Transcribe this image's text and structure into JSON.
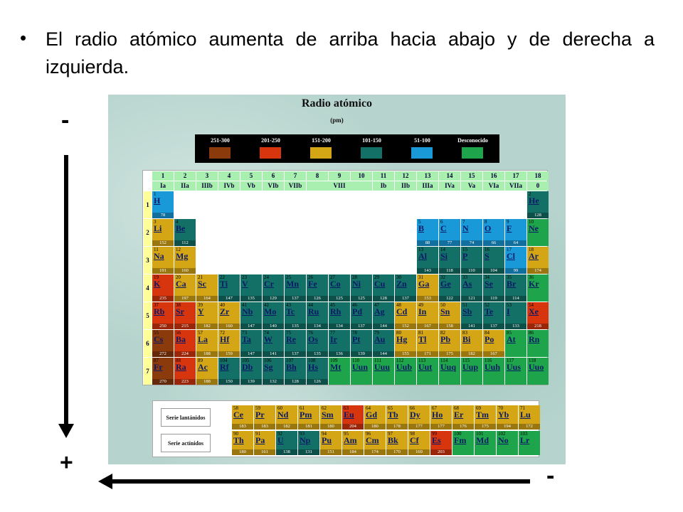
{
  "slide": {
    "bullet": "El radio atómico aumenta de arriba hacia abajo y de derecha a izquierda."
  },
  "markers": {
    "top": "-",
    "bottom": "+",
    "right": "-"
  },
  "chart": {
    "title": "Radio atómico",
    "unit": "(pm)",
    "legend": [
      {
        "label": "251-300",
        "color": "#8b3a0c"
      },
      {
        "label": "201-250",
        "color": "#d6350e"
      },
      {
        "label": "151-200",
        "color": "#d4a514"
      },
      {
        "label": "101-150",
        "color": "#137066"
      },
      {
        "label": "51-100",
        "color": "#1a99d8"
      },
      {
        "label": "Desconocido",
        "color": "#1ea54b"
      }
    ],
    "groups_num": [
      "1",
      "2",
      "3",
      "4",
      "5",
      "6",
      "7",
      "8",
      "9",
      "10",
      "11",
      "12",
      "13",
      "14",
      "15",
      "16",
      "17",
      "18"
    ],
    "groups_roman": [
      "Ia",
      "IIa",
      "IIIb",
      "IVb",
      "Vb",
      "VIb",
      "VIIb",
      "VIII",
      "Ib",
      "IIb",
      "IIIa",
      "IVa",
      "Va",
      "VIa",
      "VIIa",
      "0"
    ],
    "periods": [
      "1",
      "2",
      "3",
      "4",
      "5",
      "6",
      "7"
    ],
    "series_labels": {
      "lanthanides": "Serie lantánidos",
      "actinides": "Serie actínidos"
    },
    "elements": [
      {
        "z": "1",
        "sym": "H",
        "r": "78",
        "p": 1,
        "g": 1
      },
      {
        "z": "2",
        "sym": "He",
        "r": "128",
        "p": 1,
        "g": 18
      },
      {
        "z": "3",
        "sym": "Li",
        "r": "152",
        "p": 2,
        "g": 1
      },
      {
        "z": "4",
        "sym": "Be",
        "r": "112",
        "p": 2,
        "g": 2
      },
      {
        "z": "5",
        "sym": "B",
        "r": "88",
        "p": 2,
        "g": 13
      },
      {
        "z": "6",
        "sym": "C",
        "r": "77",
        "p": 2,
        "g": 14
      },
      {
        "z": "7",
        "sym": "N",
        "r": "74",
        "p": 2,
        "g": 15
      },
      {
        "z": "8",
        "sym": "O",
        "r": "66",
        "p": 2,
        "g": 16
      },
      {
        "z": "9",
        "sym": "F",
        "r": "64",
        "p": 2,
        "g": 17
      },
      {
        "z": "10",
        "sym": "Ne",
        "r": "",
        "p": 2,
        "g": 18
      },
      {
        "z": "11",
        "sym": "Na",
        "r": "191",
        "p": 3,
        "g": 1
      },
      {
        "z": "12",
        "sym": "Mg",
        "r": "160",
        "p": 3,
        "g": 2
      },
      {
        "z": "13",
        "sym": "Al",
        "r": "143",
        "p": 3,
        "g": 13
      },
      {
        "z": "14",
        "sym": "Si",
        "r": "118",
        "p": 3,
        "g": 14
      },
      {
        "z": "15",
        "sym": "P",
        "r": "110",
        "p": 3,
        "g": 15
      },
      {
        "z": "16",
        "sym": "S",
        "r": "104",
        "p": 3,
        "g": 16
      },
      {
        "z": "17",
        "sym": "Cl",
        "r": "99",
        "p": 3,
        "g": 17
      },
      {
        "z": "18",
        "sym": "Ar",
        "r": "174",
        "p": 3,
        "g": 18
      },
      {
        "z": "19",
        "sym": "K",
        "r": "235",
        "p": 4,
        "g": 1
      },
      {
        "z": "20",
        "sym": "Ca",
        "r": "197",
        "p": 4,
        "g": 2
      },
      {
        "z": "21",
        "sym": "Sc",
        "r": "164",
        "p": 4,
        "g": 3
      },
      {
        "z": "22",
        "sym": "Ti",
        "r": "147",
        "p": 4,
        "g": 4
      },
      {
        "z": "23",
        "sym": "V",
        "r": "135",
        "p": 4,
        "g": 5
      },
      {
        "z": "24",
        "sym": "Cr",
        "r": "129",
        "p": 4,
        "g": 6
      },
      {
        "z": "25",
        "sym": "Mn",
        "r": "137",
        "p": 4,
        "g": 7
      },
      {
        "z": "26",
        "sym": "Fe",
        "r": "126",
        "p": 4,
        "g": 8
      },
      {
        "z": "27",
        "sym": "Co",
        "r": "125",
        "p": 4,
        "g": 9
      },
      {
        "z": "28",
        "sym": "Ni",
        "r": "125",
        "p": 4,
        "g": 10
      },
      {
        "z": "29",
        "sym": "Cu",
        "r": "128",
        "p": 4,
        "g": 11
      },
      {
        "z": "30",
        "sym": "Zn",
        "r": "137",
        "p": 4,
        "g": 12
      },
      {
        "z": "31",
        "sym": "Ga",
        "r": "153",
        "p": 4,
        "g": 13
      },
      {
        "z": "32",
        "sym": "Ge",
        "r": "122",
        "p": 4,
        "g": 14
      },
      {
        "z": "33",
        "sym": "As",
        "r": "121",
        "p": 4,
        "g": 15
      },
      {
        "z": "34",
        "sym": "Se",
        "r": "119",
        "p": 4,
        "g": 16
      },
      {
        "z": "35",
        "sym": "Br",
        "r": "114",
        "p": 4,
        "g": 17
      },
      {
        "z": "36",
        "sym": "Kr",
        "r": "",
        "p": 4,
        "g": 18
      },
      {
        "z": "37",
        "sym": "Rb",
        "r": "250",
        "p": 5,
        "g": 1
      },
      {
        "z": "38",
        "sym": "Sr",
        "r": "215",
        "p": 5,
        "g": 2
      },
      {
        "z": "39",
        "sym": "Y",
        "r": "182",
        "p": 5,
        "g": 3
      },
      {
        "z": "40",
        "sym": "Zr",
        "r": "160",
        "p": 5,
        "g": 4
      },
      {
        "z": "41",
        "sym": "Nb",
        "r": "147",
        "p": 5,
        "g": 5
      },
      {
        "z": "42",
        "sym": "Mo",
        "r": "140",
        "p": 5,
        "g": 6
      },
      {
        "z": "43",
        "sym": "Tc",
        "r": "135",
        "p": 5,
        "g": 7
      },
      {
        "z": "44",
        "sym": "Ru",
        "r": "134",
        "p": 5,
        "g": 8
      },
      {
        "z": "45",
        "sym": "Rh",
        "r": "134",
        "p": 5,
        "g": 9
      },
      {
        "z": "46",
        "sym": "Pd",
        "r": "137",
        "p": 5,
        "g": 10
      },
      {
        "z": "47",
        "sym": "Ag",
        "r": "144",
        "p": 5,
        "g": 11
      },
      {
        "z": "48",
        "sym": "Cd",
        "r": "152",
        "p": 5,
        "g": 12
      },
      {
        "z": "49",
        "sym": "In",
        "r": "167",
        "p": 5,
        "g": 13
      },
      {
        "z": "50",
        "sym": "Sn",
        "r": "158",
        "p": 5,
        "g": 14
      },
      {
        "z": "51",
        "sym": "Sb",
        "r": "141",
        "p": 5,
        "g": 15
      },
      {
        "z": "52",
        "sym": "Te",
        "r": "137",
        "p": 5,
        "g": 16
      },
      {
        "z": "53",
        "sym": "I",
        "r": "133",
        "p": 5,
        "g": 17
      },
      {
        "z": "54",
        "sym": "Xe",
        "r": "218",
        "p": 5,
        "g": 18
      },
      {
        "z": "55",
        "sym": "Cs",
        "r": "272",
        "p": 6,
        "g": 1
      },
      {
        "z": "56",
        "sym": "Ba",
        "r": "224",
        "p": 6,
        "g": 2
      },
      {
        "z": "57",
        "sym": "La",
        "r": "188",
        "p": 6,
        "g": 3
      },
      {
        "z": "72",
        "sym": "Hf",
        "r": "159",
        "p": 6,
        "g": 4
      },
      {
        "z": "73",
        "sym": "Ta",
        "r": "147",
        "p": 6,
        "g": 5
      },
      {
        "z": "74",
        "sym": "W",
        "r": "141",
        "p": 6,
        "g": 6
      },
      {
        "z": "75",
        "sym": "Re",
        "r": "137",
        "p": 6,
        "g": 7
      },
      {
        "z": "76",
        "sym": "Os",
        "r": "135",
        "p": 6,
        "g": 8
      },
      {
        "z": "77",
        "sym": "Ir",
        "r": "136",
        "p": 6,
        "g": 9
      },
      {
        "z": "78",
        "sym": "Pt",
        "r": "139",
        "p": 6,
        "g": 10
      },
      {
        "z": "79",
        "sym": "Au",
        "r": "144",
        "p": 6,
        "g": 11
      },
      {
        "z": "80",
        "sym": "Hg",
        "r": "155",
        "p": 6,
        "g": 12
      },
      {
        "z": "81",
        "sym": "Tl",
        "r": "171",
        "p": 6,
        "g": 13
      },
      {
        "z": "82",
        "sym": "Pb",
        "r": "175",
        "p": 6,
        "g": 14
      },
      {
        "z": "83",
        "sym": "Bi",
        "r": "182",
        "p": 6,
        "g": 15
      },
      {
        "z": "84",
        "sym": "Po",
        "r": "167",
        "p": 6,
        "g": 16
      },
      {
        "z": "85",
        "sym": "At",
        "r": "",
        "p": 6,
        "g": 17
      },
      {
        "z": "86",
        "sym": "Rn",
        "r": "",
        "p": 6,
        "g": 18
      },
      {
        "z": "87",
        "sym": "Fr",
        "r": "270",
        "p": 7,
        "g": 1
      },
      {
        "z": "88",
        "sym": "Ra",
        "r": "223",
        "p": 7,
        "g": 2
      },
      {
        "z": "89",
        "sym": "Ac",
        "r": "188",
        "p": 7,
        "g": 3
      },
      {
        "z": "104",
        "sym": "Rf",
        "r": "150",
        "p": 7,
        "g": 4
      },
      {
        "z": "105",
        "sym": "Db",
        "r": "139",
        "p": 7,
        "g": 5
      },
      {
        "z": "106",
        "sym": "Sg",
        "r": "132",
        "p": 7,
        "g": 6
      },
      {
        "z": "107",
        "sym": "Bh",
        "r": "128",
        "p": 7,
        "g": 7
      },
      {
        "z": "108",
        "sym": "Hs",
        "r": "126",
        "p": 7,
        "g": 8
      },
      {
        "z": "109",
        "sym": "Mt",
        "r": "",
        "p": 7,
        "g": 9
      },
      {
        "z": "110",
        "sym": "Uun",
        "r": "",
        "p": 7,
        "g": 10
      },
      {
        "z": "111",
        "sym": "Uuu",
        "r": "",
        "p": 7,
        "g": 11
      },
      {
        "z": "112",
        "sym": "Uub",
        "r": "",
        "p": 7,
        "g": 12
      },
      {
        "z": "113",
        "sym": "Uut",
        "r": "",
        "p": 7,
        "g": 13
      },
      {
        "z": "114",
        "sym": "Uuq",
        "r": "",
        "p": 7,
        "g": 14
      },
      {
        "z": "115",
        "sym": "Uup",
        "r": "",
        "p": 7,
        "g": 15
      },
      {
        "z": "116",
        "sym": "Uuh",
        "r": "",
        "p": 7,
        "g": 16
      },
      {
        "z": "117",
        "sym": "Uus",
        "r": "",
        "p": 7,
        "g": 17
      },
      {
        "z": "118",
        "sym": "Uuo",
        "r": "",
        "p": 7,
        "g": 18
      }
    ],
    "lanthanides": [
      {
        "z": "58",
        "sym": "Ce",
        "r": "183"
      },
      {
        "z": "59",
        "sym": "Pr",
        "r": "183"
      },
      {
        "z": "60",
        "sym": "Nd",
        "r": "182"
      },
      {
        "z": "61",
        "sym": "Pm",
        "r": "181"
      },
      {
        "z": "62",
        "sym": "Sm",
        "r": "180"
      },
      {
        "z": "63",
        "sym": "Eu",
        "r": "204"
      },
      {
        "z": "64",
        "sym": "Gd",
        "r": "180"
      },
      {
        "z": "65",
        "sym": "Tb",
        "r": "178"
      },
      {
        "z": "66",
        "sym": "Dy",
        "r": "177"
      },
      {
        "z": "67",
        "sym": "Ho",
        "r": "177"
      },
      {
        "z": "68",
        "sym": "Er",
        "r": "176"
      },
      {
        "z": "69",
        "sym": "Tm",
        "r": "175"
      },
      {
        "z": "70",
        "sym": "Yb",
        "r": "194"
      },
      {
        "z": "71",
        "sym": "Lu",
        "r": "172"
      }
    ],
    "actinides": [
      {
        "z": "90",
        "sym": "Th",
        "r": "180"
      },
      {
        "z": "91",
        "sym": "Pa",
        "r": "161"
      },
      {
        "z": "92",
        "sym": "U",
        "r": "138"
      },
      {
        "z": "93",
        "sym": "Np",
        "r": "131"
      },
      {
        "z": "94",
        "sym": "Pu",
        "r": "151"
      },
      {
        "z": "95",
        "sym": "Am",
        "r": "184"
      },
      {
        "z": "96",
        "sym": "Cm",
        "r": "174"
      },
      {
        "z": "97",
        "sym": "Bk",
        "r": "170"
      },
      {
        "z": "98",
        "sym": "Cf",
        "r": "169"
      },
      {
        "z": "99",
        "sym": "Es",
        "r": "203"
      },
      {
        "z": "100",
        "sym": "Fm",
        "r": ""
      },
      {
        "z": "101",
        "sym": "Md",
        "r": ""
      },
      {
        "z": "102",
        "sym": "No",
        "r": ""
      },
      {
        "z": "103",
        "sym": "Lr",
        "r": ""
      }
    ]
  }
}
